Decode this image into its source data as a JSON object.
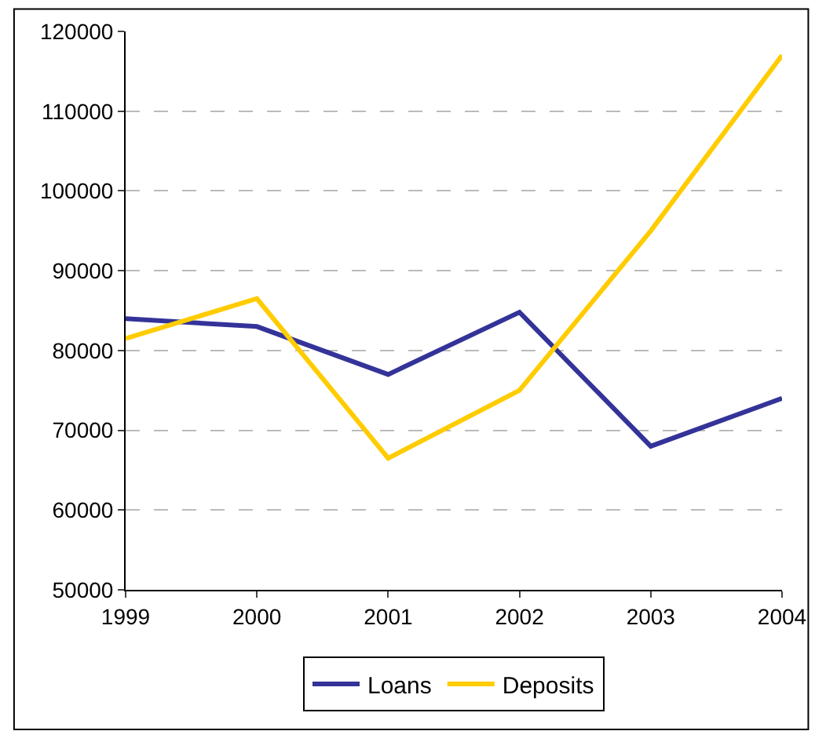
{
  "chart_data": {
    "type": "line",
    "x": [
      1999,
      2000,
      2001,
      2002,
      2003,
      2004
    ],
    "series": [
      {
        "name": "Loans",
        "color": "#333399",
        "values": [
          84000,
          83000,
          77000,
          84800,
          68000,
          74000
        ]
      },
      {
        "name": "Deposits",
        "color": "#ffcc00",
        "values": [
          81500,
          86500,
          66500,
          75000,
          95000,
          117000
        ]
      }
    ],
    "xlim": [
      1999,
      2004
    ],
    "xticks": [
      1999,
      2000,
      2001,
      2002,
      2003,
      2004
    ],
    "ylim": [
      50000,
      120000
    ],
    "yticks": [
      50000,
      60000,
      70000,
      80000,
      90000,
      100000,
      110000,
      120000
    ],
    "grid": "y",
    "legend": "bottom",
    "marker": "none",
    "line_style": "solid"
  }
}
